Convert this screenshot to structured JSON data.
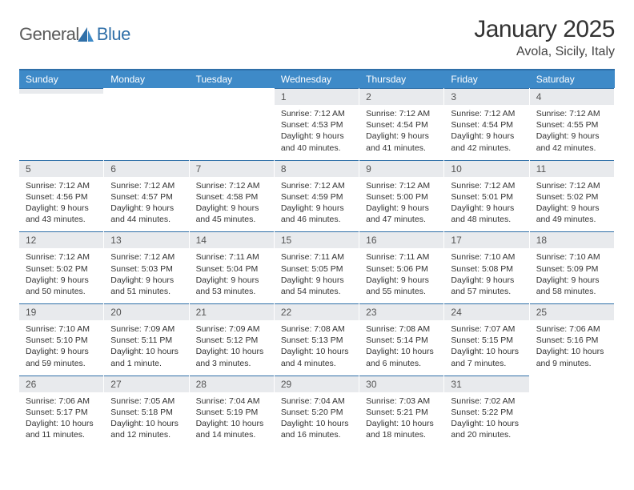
{
  "logo": {
    "textA": "General",
    "textB": "Blue"
  },
  "title": "January 2025",
  "subtitle": "Avola, Sicily, Italy",
  "weekdays": [
    "Sunday",
    "Monday",
    "Tuesday",
    "Wednesday",
    "Thursday",
    "Friday",
    "Saturday"
  ],
  "colors": {
    "headerBar": "#3e8ac8",
    "accentLine": "#2f6fa8",
    "dateBarBg": "#e8eaed"
  },
  "leadingEmpty": 3,
  "days": [
    {
      "n": "1",
      "sunrise": "7:12 AM",
      "sunset": "4:53 PM",
      "daylight": "9 hours and 40 minutes."
    },
    {
      "n": "2",
      "sunrise": "7:12 AM",
      "sunset": "4:54 PM",
      "daylight": "9 hours and 41 minutes."
    },
    {
      "n": "3",
      "sunrise": "7:12 AM",
      "sunset": "4:54 PM",
      "daylight": "9 hours and 42 minutes."
    },
    {
      "n": "4",
      "sunrise": "7:12 AM",
      "sunset": "4:55 PM",
      "daylight": "9 hours and 42 minutes."
    },
    {
      "n": "5",
      "sunrise": "7:12 AM",
      "sunset": "4:56 PM",
      "daylight": "9 hours and 43 minutes."
    },
    {
      "n": "6",
      "sunrise": "7:12 AM",
      "sunset": "4:57 PM",
      "daylight": "9 hours and 44 minutes."
    },
    {
      "n": "7",
      "sunrise": "7:12 AM",
      "sunset": "4:58 PM",
      "daylight": "9 hours and 45 minutes."
    },
    {
      "n": "8",
      "sunrise": "7:12 AM",
      "sunset": "4:59 PM",
      "daylight": "9 hours and 46 minutes."
    },
    {
      "n": "9",
      "sunrise": "7:12 AM",
      "sunset": "5:00 PM",
      "daylight": "9 hours and 47 minutes."
    },
    {
      "n": "10",
      "sunrise": "7:12 AM",
      "sunset": "5:01 PM",
      "daylight": "9 hours and 48 minutes."
    },
    {
      "n": "11",
      "sunrise": "7:12 AM",
      "sunset": "5:02 PM",
      "daylight": "9 hours and 49 minutes."
    },
    {
      "n": "12",
      "sunrise": "7:12 AM",
      "sunset": "5:02 PM",
      "daylight": "9 hours and 50 minutes."
    },
    {
      "n": "13",
      "sunrise": "7:12 AM",
      "sunset": "5:03 PM",
      "daylight": "9 hours and 51 minutes."
    },
    {
      "n": "14",
      "sunrise": "7:11 AM",
      "sunset": "5:04 PM",
      "daylight": "9 hours and 53 minutes."
    },
    {
      "n": "15",
      "sunrise": "7:11 AM",
      "sunset": "5:05 PM",
      "daylight": "9 hours and 54 minutes."
    },
    {
      "n": "16",
      "sunrise": "7:11 AM",
      "sunset": "5:06 PM",
      "daylight": "9 hours and 55 minutes."
    },
    {
      "n": "17",
      "sunrise": "7:10 AM",
      "sunset": "5:08 PM",
      "daylight": "9 hours and 57 minutes."
    },
    {
      "n": "18",
      "sunrise": "7:10 AM",
      "sunset": "5:09 PM",
      "daylight": "9 hours and 58 minutes."
    },
    {
      "n": "19",
      "sunrise": "7:10 AM",
      "sunset": "5:10 PM",
      "daylight": "9 hours and 59 minutes."
    },
    {
      "n": "20",
      "sunrise": "7:09 AM",
      "sunset": "5:11 PM",
      "daylight": "10 hours and 1 minute."
    },
    {
      "n": "21",
      "sunrise": "7:09 AM",
      "sunset": "5:12 PM",
      "daylight": "10 hours and 3 minutes."
    },
    {
      "n": "22",
      "sunrise": "7:08 AM",
      "sunset": "5:13 PM",
      "daylight": "10 hours and 4 minutes."
    },
    {
      "n": "23",
      "sunrise": "7:08 AM",
      "sunset": "5:14 PM",
      "daylight": "10 hours and 6 minutes."
    },
    {
      "n": "24",
      "sunrise": "7:07 AM",
      "sunset": "5:15 PM",
      "daylight": "10 hours and 7 minutes."
    },
    {
      "n": "25",
      "sunrise": "7:06 AM",
      "sunset": "5:16 PM",
      "daylight": "10 hours and 9 minutes."
    },
    {
      "n": "26",
      "sunrise": "7:06 AM",
      "sunset": "5:17 PM",
      "daylight": "10 hours and 11 minutes."
    },
    {
      "n": "27",
      "sunrise": "7:05 AM",
      "sunset": "5:18 PM",
      "daylight": "10 hours and 12 minutes."
    },
    {
      "n": "28",
      "sunrise": "7:04 AM",
      "sunset": "5:19 PM",
      "daylight": "10 hours and 14 minutes."
    },
    {
      "n": "29",
      "sunrise": "7:04 AM",
      "sunset": "5:20 PM",
      "daylight": "10 hours and 16 minutes."
    },
    {
      "n": "30",
      "sunrise": "7:03 AM",
      "sunset": "5:21 PM",
      "daylight": "10 hours and 18 minutes."
    },
    {
      "n": "31",
      "sunrise": "7:02 AM",
      "sunset": "5:22 PM",
      "daylight": "10 hours and 20 minutes."
    }
  ]
}
